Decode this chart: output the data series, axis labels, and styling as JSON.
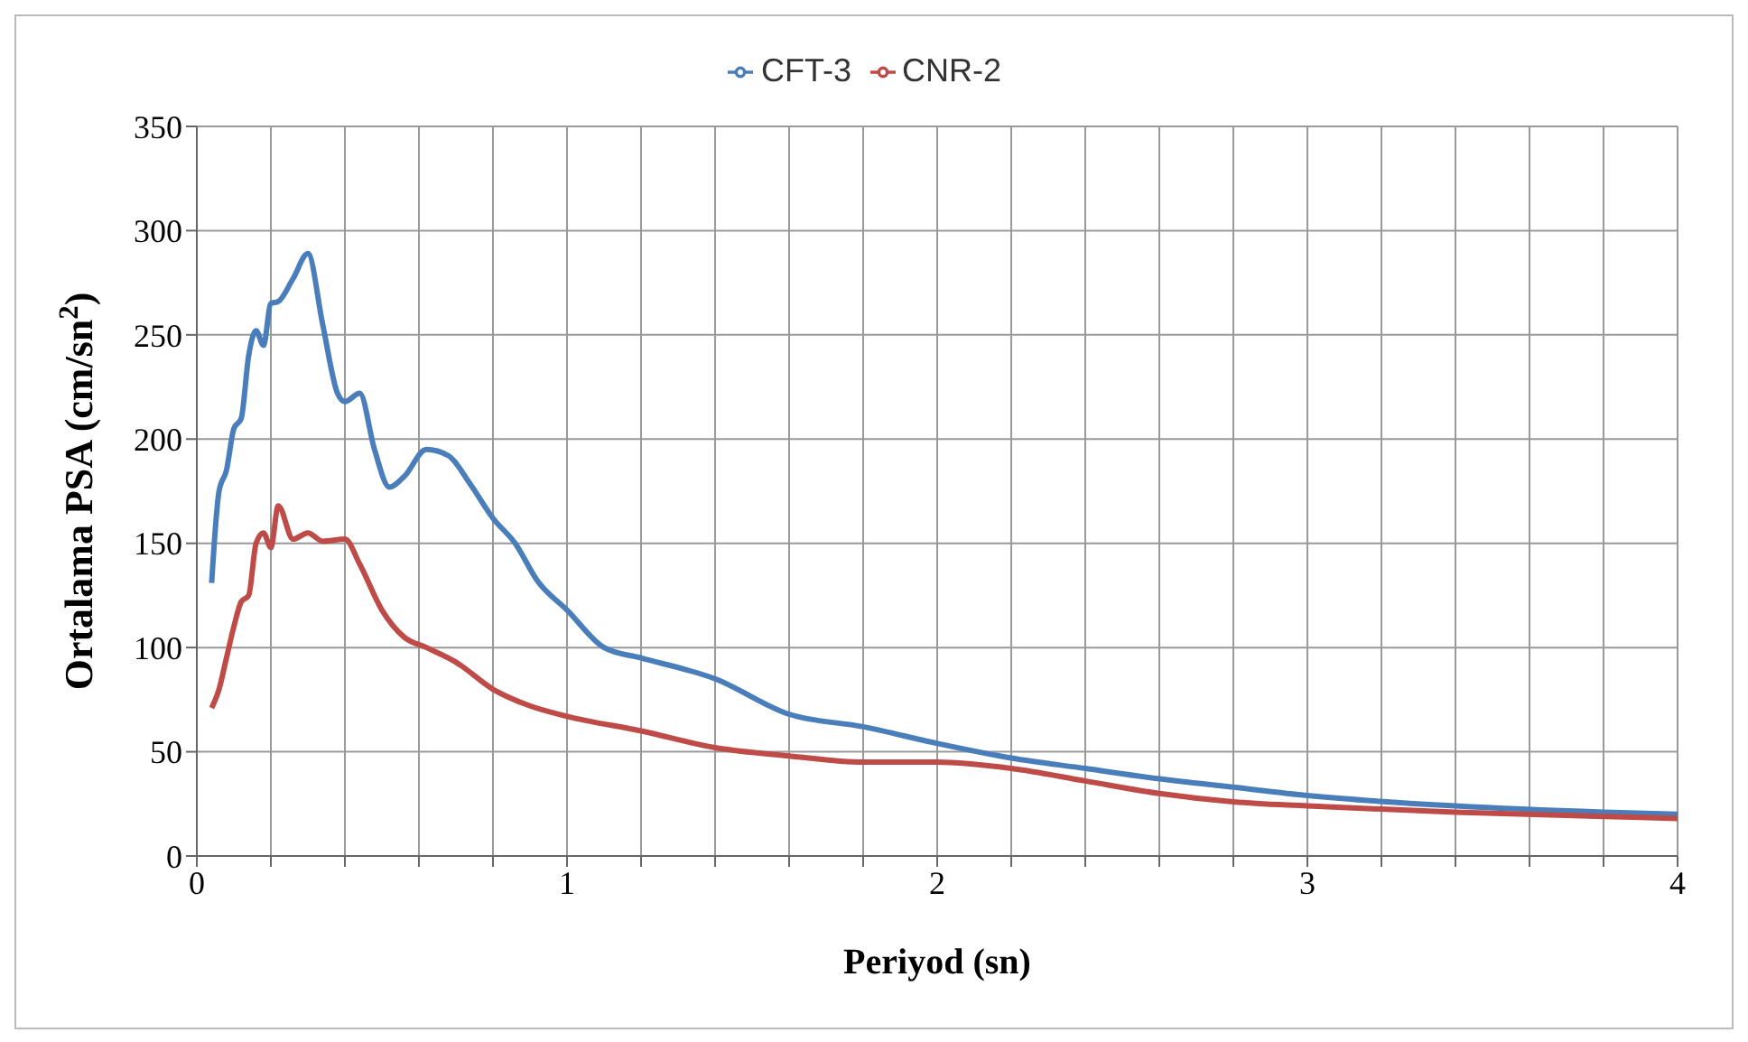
{
  "chart_data": {
    "type": "line",
    "xlabel": "Periyod (sn)",
    "ylabel": "Ortalama PSA (cm/sn$^{2}$)",
    "xlim": [
      0,
      4
    ],
    "xticks": [
      0,
      {
        "value": 0.2,
        "label": null
      },
      {
        "value": 0.4,
        "label": null
      },
      {
        "value": 0.6,
        "label": null
      },
      {
        "value": 0.8,
        "label": null
      },
      1,
      {
        "value": 1.2,
        "label": null
      },
      {
        "value": 1.4,
        "label": null
      },
      {
        "value": 1.6,
        "label": null
      },
      {
        "value": 1.8,
        "label": null
      },
      2,
      {
        "value": 2.2,
        "label": null
      },
      {
        "value": 2.4,
        "label": null
      },
      {
        "value": 2.6,
        "label": null
      },
      {
        "value": 2.8,
        "label": null
      },
      3,
      {
        "value": 3.2,
        "label": null
      },
      {
        "value": 3.4,
        "label": null
      },
      {
        "value": 3.6,
        "label": null
      },
      {
        "value": 3.8,
        "label": null
      },
      4
    ],
    "ylim": [
      0,
      350
    ],
    "yticks": [
      0,
      50,
      100,
      150,
      200,
      250,
      300,
      350
    ],
    "grid": true,
    "legend": "top",
    "marker": "none",
    "line_style": "solid",
    "series": [
      {
        "name": "CFT-3",
        "color": "#4a7ebb",
        "x": [
          0.04,
          0.06,
          0.08,
          0.1,
          0.12,
          0.14,
          0.16,
          0.18,
          0.2,
          0.22,
          0.26,
          0.3,
          0.34,
          0.38,
          0.4,
          0.44,
          0.48,
          0.52,
          0.56,
          0.62,
          0.68,
          0.74,
          0.8,
          0.86,
          0.92,
          1.0,
          1.1,
          1.2,
          1.4,
          1.6,
          1.8,
          2.0,
          2.2,
          2.4,
          2.6,
          2.8,
          3.0,
          3.4,
          3.8,
          4.0
        ],
        "values": [
          131,
          175,
          185,
          205,
          210,
          240,
          252,
          245,
          265,
          266,
          277,
          289,
          255,
          222,
          218,
          222,
          195,
          177,
          182,
          195,
          192,
          178,
          162,
          150,
          132,
          118,
          100,
          95,
          85,
          68,
          62,
          54,
          47,
          42,
          37,
          33,
          29,
          24,
          21,
          20
        ]
      },
      {
        "name": "CNR-2",
        "color": "#be4b48",
        "x": [
          0.04,
          0.06,
          0.08,
          0.1,
          0.12,
          0.14,
          0.16,
          0.18,
          0.2,
          0.22,
          0.26,
          0.3,
          0.34,
          0.4,
          0.44,
          0.5,
          0.56,
          0.62,
          0.7,
          0.8,
          0.9,
          1.0,
          1.2,
          1.4,
          1.6,
          1.8,
          2.0,
          2.2,
          2.4,
          2.6,
          2.8,
          3.0,
          3.4,
          3.8,
          4.0
        ],
        "values": [
          71,
          80,
          95,
          110,
          122,
          125,
          150,
          155,
          148,
          168,
          152,
          155,
          151,
          152,
          140,
          118,
          105,
          100,
          93,
          80,
          72,
          67,
          60,
          52,
          48,
          45,
          45,
          42,
          36,
          30,
          26,
          24,
          21,
          19,
          18
        ]
      }
    ]
  }
}
